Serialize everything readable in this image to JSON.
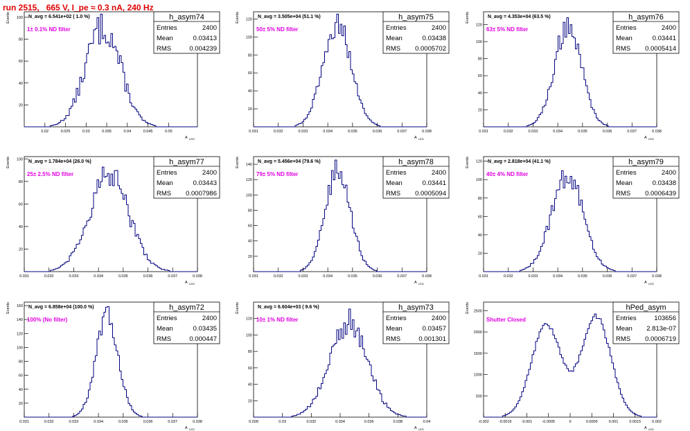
{
  "title": "run 2515,   665 V, I_pe ≈ 0.3 nA, 240 Hz",
  "ylabel": "Events",
  "xlabel": "A",
  "xlabel_sub": "LED",
  "stat_labels": {
    "entries": "Entries",
    "mean": "Mean",
    "rms": "RMS"
  },
  "colors": {
    "line": "#00007f",
    "annotation": "#e000e0",
    "title": "#e00000",
    "frame": "#000000"
  },
  "chart_data": [
    {
      "type": "histogram",
      "name": "h_asym74",
      "navg": "N_avg = 6.541e+02 ( 1.0 %)",
      "note": "1± 0.1% ND filter",
      "entries": "2400",
      "mean": "0.03413",
      "rms": "0.004239",
      "xlim": [
        0.015,
        0.057
      ],
      "ylim": [
        0,
        105
      ],
      "shape": "gauss",
      "mu": 0.0341,
      "sigma": 0.0042,
      "peak": 92,
      "noise": 0.18,
      "nbins": 100,
      "xticks": [
        0.02,
        0.025,
        0.03,
        0.035,
        0.04,
        0.045,
        0.05
      ],
      "xticklabels": [
        "0.02",
        "0.025",
        "0.03",
        "0.035",
        "0.04",
        "0.045",
        "0.05"
      ],
      "yticks": [
        0,
        20,
        40,
        60,
        80,
        100
      ],
      "yticklabels": [
        "",
        "20",
        "40",
        "60",
        "80",
        "100"
      ]
    },
    {
      "type": "histogram",
      "name": "h_asym75",
      "navg": "N_avg = 3.505e+04 (51.1 %)",
      "note": "50± 5% ND filter",
      "entries": "2400",
      "mean": "0.03438",
      "rms": "0.0005702",
      "xlim": [
        0.031,
        0.038
      ],
      "ylim": [
        0,
        128
      ],
      "shape": "gauss",
      "mu": 0.03438,
      "sigma": 0.00057,
      "peak": 115,
      "noise": 0.12,
      "nbins": 100,
      "xticks": [
        0.031,
        0.032,
        0.033,
        0.034,
        0.035,
        0.036,
        0.037,
        0.038
      ],
      "xticklabels": [
        "0.031",
        "0.032",
        "0.033",
        "0.034",
        "0.035",
        "0.036",
        "0.037",
        "0.038"
      ],
      "yticks": [
        0,
        20,
        40,
        60,
        80,
        100,
        120
      ],
      "yticklabels": [
        "",
        "20",
        "40",
        "60",
        "80",
        "100",
        "120"
      ]
    },
    {
      "type": "histogram",
      "name": "h_asym76",
      "navg": "N_avg = 4.353e+04 (63.5 %)",
      "note": "63± 5% ND filter",
      "entries": "2400",
      "mean": "0.03441",
      "rms": "0.0005414",
      "xlim": [
        0.031,
        0.038
      ],
      "ylim": [
        0,
        135
      ],
      "shape": "gauss",
      "mu": 0.03441,
      "sigma": 0.00054,
      "peak": 120,
      "noise": 0.12,
      "nbins": 100,
      "xticks": [
        0.031,
        0.032,
        0.033,
        0.034,
        0.035,
        0.036,
        0.037,
        0.038
      ],
      "xticklabels": [
        "0.031",
        "0.032",
        "0.033",
        "0.034",
        "0.035",
        "0.036",
        "0.037",
        "0.038"
      ],
      "yticks": [
        0,
        20,
        40,
        60,
        80,
        100,
        120
      ],
      "yticklabels": [
        "",
        "20",
        "40",
        "60",
        "80",
        "100",
        "120"
      ]
    },
    {
      "type": "histogram",
      "name": "h_asym77",
      "navg": "N_avg = 1.784e+04 (26.0 %)",
      "note": "25± 2.5% ND filter",
      "entries": "2400",
      "mean": "0.03443",
      "rms": "0.0007986",
      "xlim": [
        0.031,
        0.038
      ],
      "ylim": [
        0,
        102
      ],
      "shape": "gauss",
      "mu": 0.03443,
      "sigma": 0.0008,
      "peak": 85,
      "noise": 0.15,
      "nbins": 100,
      "xticks": [
        0.031,
        0.032,
        0.033,
        0.034,
        0.035,
        0.036,
        0.037,
        0.038
      ],
      "xticklabels": [
        "0.031",
        "0.032",
        "0.033",
        "0.034",
        "0.035",
        "0.036",
        "0.037",
        "0.038"
      ],
      "yticks": [
        0,
        20,
        40,
        60,
        80,
        100
      ],
      "yticklabels": [
        "",
        "20",
        "40",
        "60",
        "80",
        "100"
      ]
    },
    {
      "type": "histogram",
      "name": "h_asym78",
      "navg": "N_avg = 5.456e+04 (79.6 %)",
      "note": "79± 5% ND filter",
      "entries": "2400",
      "mean": "0.03441",
      "rms": "0.0005094",
      "xlim": [
        0.031,
        0.038
      ],
      "ylim": [
        0,
        150
      ],
      "shape": "gauss",
      "mu": 0.03441,
      "sigma": 0.00051,
      "peak": 132,
      "noise": 0.12,
      "nbins": 100,
      "xticks": [
        0.031,
        0.032,
        0.033,
        0.034,
        0.035,
        0.036,
        0.037,
        0.038
      ],
      "xticklabels": [
        "0.031",
        "0.032",
        "0.033",
        "0.034",
        "0.035",
        "0.036",
        "0.037",
        "0.038"
      ],
      "yticks": [
        0,
        20,
        40,
        60,
        80,
        100,
        120,
        140
      ],
      "yticklabels": [
        "",
        "20",
        "40",
        "60",
        "80",
        "100",
        "120",
        "140"
      ]
    },
    {
      "type": "histogram",
      "name": "h_asym79",
      "navg": "N_avg = 2.818e+04 (41.1 %)",
      "note": "40± 4% ND filter",
      "entries": "2400",
      "mean": "0.03438",
      "rms": "0.0006439",
      "xlim": [
        0.031,
        0.038
      ],
      "ylim": [
        0,
        125
      ],
      "shape": "gauss",
      "mu": 0.03438,
      "sigma": 0.00064,
      "peak": 105,
      "noise": 0.13,
      "nbins": 100,
      "xticks": [
        0.031,
        0.032,
        0.033,
        0.034,
        0.035,
        0.036,
        0.037,
        0.038
      ],
      "xticklabels": [
        "0.031",
        "0.032",
        "0.033",
        "0.034",
        "0.035",
        "0.036",
        "0.037",
        "0.038"
      ],
      "yticks": [
        0,
        20,
        40,
        60,
        80,
        100,
        120
      ],
      "yticklabels": [
        "",
        "20",
        "40",
        "60",
        "80",
        "100",
        "120"
      ]
    },
    {
      "type": "histogram",
      "name": "h_asym72",
      "navg": "N_avg = 6.858e+04 (100.0 %)",
      "note": "100% (No filter)",
      "entries": "2400",
      "mean": "0.03435",
      "rms": "0.000447",
      "xlim": [
        0.031,
        0.038
      ],
      "ylim": [
        0,
        165
      ],
      "shape": "gauss",
      "mu": 0.03435,
      "sigma": 0.00045,
      "peak": 145,
      "noise": 0.1,
      "nbins": 100,
      "xticks": [
        0.031,
        0.032,
        0.033,
        0.034,
        0.035,
        0.036,
        0.037,
        0.038
      ],
      "xticklabels": [
        "0.031",
        "0.032",
        "0.033",
        "0.034",
        "0.035",
        "0.036",
        "0.037",
        "0.038"
      ],
      "yticks": [
        0,
        20,
        40,
        60,
        80,
        100,
        120,
        140,
        160
      ],
      "yticklabels": [
        "",
        "20",
        "40",
        "60",
        "80",
        "100",
        "120",
        "140",
        "160"
      ]
    },
    {
      "type": "histogram",
      "name": "h_asym73",
      "navg": "N_avg = 6.604e+03 ( 9.6 %)",
      "note": "10± 1% ND filter",
      "entries": "2400",
      "mean": "0.03457",
      "rms": "0.001301",
      "xlim": [
        0.028,
        0.04
      ],
      "ylim": [
        0,
        140
      ],
      "shape": "gauss",
      "mu": 0.03457,
      "sigma": 0.0013,
      "peak": 115,
      "noise": 0.15,
      "nbins": 100,
      "xticks": [
        0.028,
        0.03,
        0.032,
        0.034,
        0.036,
        0.038,
        0.04
      ],
      "xticklabels": [
        "0.028",
        "0.03",
        "0.032",
        "0.034",
        "0.036",
        "0.038",
        "0.04"
      ],
      "yticks": [
        0,
        20,
        40,
        60,
        80,
        100,
        120
      ],
      "yticklabels": [
        "",
        "20",
        "40",
        "60",
        "80",
        "100",
        "120"
      ]
    },
    {
      "type": "histogram",
      "name": "hPed_asym",
      "navg": "",
      "note": "Shutter Closed",
      "entries": "103656",
      "mean": "2.813e-07",
      "rms": "0.0006719",
      "xlim": [
        -0.002,
        0.002
      ],
      "ylim": [
        0,
        2700
      ],
      "shape": "bimodal",
      "mu1": -0.00055,
      "mu2": 0.0006,
      "sigma": 0.00034,
      "peak": 2300,
      "noise": 0.03,
      "nbins": 100,
      "xticks": [
        -0.002,
        -0.0015,
        -0.001,
        -0.0005,
        0,
        0.0005,
        0.001,
        0.0015,
        0.002
      ],
      "xticklabels": [
        "-0.002",
        "-0.0015",
        "-0.001",
        "-0.0005",
        "0",
        "0.0005",
        "0.001",
        "0.0015",
        "0.002"
      ],
      "yticks": [
        0,
        500,
        1000,
        1500,
        2000,
        2500
      ],
      "yticklabels": [
        "",
        "500",
        "1000",
        "1500",
        "2000",
        "2500"
      ]
    }
  ]
}
